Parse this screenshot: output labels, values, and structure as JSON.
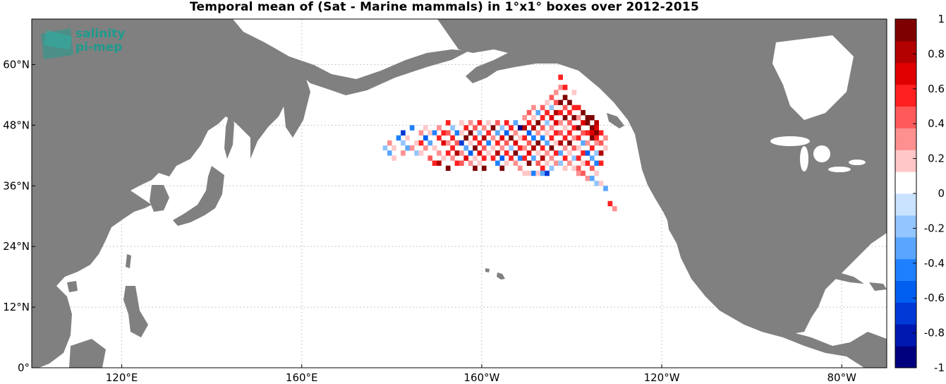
{
  "title": "Temporal mean of (Sat - Marine mammals) in 1°x1° boxes over 2012-2015",
  "logo": {
    "line1": "salinity",
    "line2": "pi-mep"
  },
  "colors": {
    "land": "#808080",
    "ocean": "#ffffff",
    "grid": "#c8c8c8",
    "logo": "#1f9a8e",
    "scale": [
      "#00007f",
      "#0018b0",
      "#0039d6",
      "#005ff0",
      "#1f80ff",
      "#5aa6ff",
      "#93c5ff",
      "#c9e2ff",
      "#ffffff",
      "#ffc8c8",
      "#ff9090",
      "#ff5a5a",
      "#ff2020",
      "#e00000",
      "#b30000",
      "#7f0000"
    ]
  },
  "chart_data": {
    "type": "heatmap",
    "title": "Temporal mean of (Sat - Marine mammals) in 1°x1° boxes over 2012-2015",
    "xlabel": "",
    "ylabel": "",
    "xlim_lon": [
      100,
      290
    ],
    "ylim_lat": [
      0,
      69
    ],
    "x_ticks": [
      {
        "lon": 120,
        "label": "120°E"
      },
      {
        "lon": 160,
        "label": "160°E"
      },
      {
        "lon": 200,
        "label": "160°W"
      },
      {
        "lon": 240,
        "label": "120°W"
      },
      {
        "lon": 280,
        "label": "80°W"
      }
    ],
    "y_ticks": [
      {
        "lat": 0,
        "label": "0°"
      },
      {
        "lat": 12,
        "label": "12°N"
      },
      {
        "lat": 24,
        "label": "24°N"
      },
      {
        "lat": 36,
        "label": "36°N"
      },
      {
        "lat": 48,
        "label": "48°N"
      },
      {
        "lat": 60,
        "label": "60°N"
      }
    ],
    "colorbar": {
      "min": -1,
      "max": 1,
      "ticks": [
        1,
        0.8,
        0.6,
        0.4,
        0.2,
        0,
        -0.2,
        -0.4,
        -0.6,
        -0.8,
        -1
      ],
      "tick_labels": [
        "1",
        "0.8",
        "0.6",
        "0.4",
        "0.2",
        "0",
        "-0.2",
        "-0.4",
        "-0.6",
        "-0.8",
        "-1"
      ]
    },
    "grid": true,
    "cell_size_deg": 1,
    "cells_note": "1°x1° boxes in North Pacific, ~39°N–53°N, ~178°E–124°W",
    "cells": [
      [
        178,
        43,
        -0.2
      ],
      [
        178,
        42,
        0.1
      ],
      [
        179,
        44,
        0.3
      ],
      [
        179,
        42,
        -0.3
      ],
      [
        180,
        43,
        0.2
      ],
      [
        180,
        41,
        0.2
      ],
      [
        181,
        45,
        -0.5
      ],
      [
        181,
        43,
        0.1
      ],
      [
        182,
        46,
        -0.7
      ],
      [
        182,
        44,
        -0.2
      ],
      [
        182,
        42,
        0.3
      ],
      [
        183,
        45,
        0.2
      ],
      [
        183,
        43,
        -0.3
      ],
      [
        184,
        47,
        -0.4
      ],
      [
        184,
        45,
        0.1
      ],
      [
        184,
        43,
        0.3
      ],
      [
        185,
        44,
        0.2
      ],
      [
        185,
        42,
        -0.2
      ],
      [
        186,
        46,
        0.3
      ],
      [
        186,
        44,
        0.5
      ],
      [
        186,
        42,
        0.2
      ],
      [
        187,
        47,
        0.2
      ],
      [
        187,
        45,
        -0.6
      ],
      [
        187,
        43,
        0.3
      ],
      [
        188,
        46,
        0.2
      ],
      [
        188,
        44,
        -0.3
      ],
      [
        188,
        41,
        0.4
      ],
      [
        189,
        46,
        -0.5
      ],
      [
        189,
        45,
        0.1
      ],
      [
        189,
        43,
        0.2
      ],
      [
        189,
        40,
        0.6
      ],
      [
        190,
        47,
        0.3
      ],
      [
        190,
        45,
        0.5
      ],
      [
        190,
        42,
        0.3
      ],
      [
        190,
        40,
        0.8
      ],
      [
        191,
        46,
        0.6
      ],
      [
        191,
        44,
        0.7
      ],
      [
        191,
        41,
        0.2
      ],
      [
        192,
        48,
        0.5
      ],
      [
        192,
        46,
        0.4
      ],
      [
        192,
        44,
        0.3
      ],
      [
        192,
        42,
        0.6
      ],
      [
        192,
        39,
        0.9
      ],
      [
        193,
        47,
        -0.2
      ],
      [
        193,
        45,
        0.6
      ],
      [
        193,
        43,
        0.5
      ],
      [
        193,
        41,
        0.3
      ],
      [
        194,
        46,
        -0.4
      ],
      [
        194,
        44,
        0.4
      ],
      [
        194,
        42,
        0.8
      ],
      [
        194,
        40,
        0.5
      ],
      [
        195,
        48,
        0.2
      ],
      [
        195,
        46,
        0.2
      ],
      [
        195,
        44,
        -0.7
      ],
      [
        195,
        42,
        0.3
      ],
      [
        195,
        40,
        0.4
      ],
      [
        196,
        47,
        0.5
      ],
      [
        196,
        45,
        0.9
      ],
      [
        196,
        43,
        -0.3
      ],
      [
        196,
        41,
        0.7
      ],
      [
        197,
        48,
        0.3
      ],
      [
        197,
        46,
        0.9
      ],
      [
        197,
        44,
        0.2
      ],
      [
        197,
        42,
        -0.6
      ],
      [
        197,
        40,
        0.3
      ],
      [
        198,
        47,
        0.4
      ],
      [
        198,
        45,
        0.6
      ],
      [
        198,
        43,
        0.9
      ],
      [
        198,
        41,
        0.2
      ],
      [
        198,
        39,
        1.0
      ],
      [
        199,
        48,
        0.6
      ],
      [
        199,
        46,
        -0.2
      ],
      [
        199,
        44,
        0.5
      ],
      [
        199,
        42,
        0.7
      ],
      [
        199,
        40,
        0.2
      ],
      [
        200,
        47,
        0.3
      ],
      [
        200,
        45,
        0.8
      ],
      [
        200,
        43,
        0.4
      ],
      [
        200,
        41,
        0.6
      ],
      [
        200,
        39,
        0.9
      ],
      [
        201,
        48,
        0.2
      ],
      [
        201,
        46,
        0.5
      ],
      [
        201,
        44,
        -0.5
      ],
      [
        201,
        42,
        0.2
      ],
      [
        202,
        47,
        0.9
      ],
      [
        202,
        45,
        0.3
      ],
      [
        202,
        43,
        0.2
      ],
      [
        202,
        41,
        0.5
      ],
      [
        203,
        48,
        0.4
      ],
      [
        203,
        46,
        -0.3
      ],
      [
        203,
        44,
        0.6
      ],
      [
        203,
        42,
        0.8
      ],
      [
        203,
        40,
        -0.4
      ],
      [
        204,
        47,
        -0.2
      ],
      [
        204,
        45,
        0.7
      ],
      [
        204,
        43,
        0.3
      ],
      [
        204,
        41,
        -0.6
      ],
      [
        204,
        39,
        0.9
      ],
      [
        205,
        48,
        0.5
      ],
      [
        205,
        46,
        -0.6
      ],
      [
        205,
        44,
        0.4
      ],
      [
        205,
        42,
        0.6
      ],
      [
        205,
        40,
        0.2
      ],
      [
        206,
        47,
        0.6
      ],
      [
        206,
        45,
        0.9
      ],
      [
        206,
        43,
        -0.2
      ],
      [
        206,
        41,
        0.5
      ],
      [
        207,
        48,
        -0.3
      ],
      [
        207,
        46,
        0.3
      ],
      [
        207,
        44,
        0.7
      ],
      [
        207,
        42,
        0.9
      ],
      [
        207,
        40,
        0.3
      ],
      [
        208,
        47,
        -0.9
      ],
      [
        208,
        45,
        0.2
      ],
      [
        208,
        43,
        0.6
      ],
      [
        208,
        41,
        -0.4
      ],
      [
        208,
        39,
        0.3
      ],
      [
        209,
        49,
        0.3
      ],
      [
        209,
        47,
        0.8
      ],
      [
        209,
        45,
        0.5
      ],
      [
        209,
        43,
        0.3
      ],
      [
        209,
        41,
        0.5
      ],
      [
        209,
        38,
        0.2
      ],
      [
        210,
        50,
        0.4
      ],
      [
        210,
        48,
        0.6
      ],
      [
        210,
        46,
        -0.6
      ],
      [
        210,
        44,
        0.4
      ],
      [
        210,
        42,
        0.7
      ],
      [
        210,
        40,
        0.9
      ],
      [
        210,
        38,
        0.2
      ],
      [
        211,
        51,
        0.3
      ],
      [
        211,
        49,
        0.2
      ],
      [
        211,
        47,
        0.8
      ],
      [
        211,
        45,
        -0.5
      ],
      [
        211,
        43,
        0.8
      ],
      [
        211,
        41,
        -0.3
      ],
      [
        211,
        38,
        -0.4
      ],
      [
        212,
        50,
        -0.3
      ],
      [
        212,
        48,
        0.9
      ],
      [
        212,
        46,
        0.3
      ],
      [
        212,
        44,
        0.9
      ],
      [
        212,
        42,
        0.2
      ],
      [
        212,
        40,
        0.4
      ],
      [
        212,
        38,
        0.2
      ],
      [
        213,
        51,
        0.4
      ],
      [
        213,
        49,
        0.5
      ],
      [
        213,
        47,
        0.4
      ],
      [
        213,
        45,
        -0.4
      ],
      [
        213,
        43,
        0.6
      ],
      [
        213,
        41,
        0.8
      ],
      [
        213,
        39,
        0.6
      ],
      [
        213,
        38,
        -0.3
      ],
      [
        214,
        52,
        0.2
      ],
      [
        214,
        50,
        0.6
      ],
      [
        214,
        48,
        -0.2
      ],
      [
        214,
        46,
        0.2
      ],
      [
        214,
        44,
        -0.3
      ],
      [
        214,
        42,
        0.3
      ],
      [
        214,
        40,
        0.2
      ],
      [
        214,
        38,
        -0.7
      ],
      [
        215,
        53,
        0.4
      ],
      [
        215,
        51,
        -0.2
      ],
      [
        215,
        49,
        0.7
      ],
      [
        215,
        47,
        0.3
      ],
      [
        215,
        45,
        0.6
      ],
      [
        215,
        43,
        0.9
      ],
      [
        215,
        41,
        0.3
      ],
      [
        215,
        39,
        -0.2
      ],
      [
        216,
        54,
        0.3
      ],
      [
        216,
        52,
        0.4
      ],
      [
        216,
        50,
        0.8
      ],
      [
        216,
        48,
        0.7
      ],
      [
        216,
        46,
        0.5
      ],
      [
        216,
        44,
        0.2
      ],
      [
        216,
        42,
        0.6
      ],
      [
        216,
        40,
        0.3
      ],
      [
        217,
        57,
        0.6
      ],
      [
        217,
        55,
        0.3
      ],
      [
        217,
        52,
        0.9
      ],
      [
        217,
        50,
        0.5
      ],
      [
        217,
        48,
        0.3
      ],
      [
        217,
        46,
        0.4
      ],
      [
        217,
        44,
        0.8
      ],
      [
        217,
        42,
        -0.3
      ],
      [
        217,
        40,
        -0.2
      ],
      [
        218,
        55,
        0.5
      ],
      [
        218,
        53,
        1.0
      ],
      [
        218,
        51,
        0.4
      ],
      [
        218,
        49,
        0.9
      ],
      [
        218,
        47,
        0.2
      ],
      [
        218,
        45,
        0.5
      ],
      [
        218,
        43,
        0.3
      ],
      [
        218,
        41,
        0.6
      ],
      [
        218,
        39,
        0.2
      ],
      [
        219,
        52,
        0.9
      ],
      [
        219,
        50,
        0.6
      ],
      [
        219,
        48,
        0.4
      ],
      [
        219,
        46,
        0.6
      ],
      [
        219,
        44,
        0.9
      ],
      [
        219,
        42,
        0.2
      ],
      [
        219,
        40,
        0.3
      ],
      [
        220,
        54,
        0.2
      ],
      [
        220,
        51,
        0.5
      ],
      [
        220,
        49,
        0.9
      ],
      [
        220,
        47,
        0.6
      ],
      [
        220,
        45,
        0.3
      ],
      [
        220,
        43,
        0.4
      ],
      [
        220,
        41,
        -0.2
      ],
      [
        220,
        39,
        0.2
      ],
      [
        221,
        51,
        0.6
      ],
      [
        221,
        49,
        0.3
      ],
      [
        221,
        47,
        0.9
      ],
      [
        221,
        45,
        0.6
      ],
      [
        221,
        43,
        0.2
      ],
      [
        221,
        41,
        0.6
      ],
      [
        221,
        39,
        0.4
      ],
      [
        221,
        38,
        0.3
      ],
      [
        222,
        50,
        1.0
      ],
      [
        222,
        48,
        0.7
      ],
      [
        222,
        46,
        0.4
      ],
      [
        222,
        44,
        -0.3
      ],
      [
        222,
        42,
        0.5
      ],
      [
        222,
        40,
        0.2
      ],
      [
        222,
        38,
        0.4
      ],
      [
        223,
        49,
        1.0
      ],
      [
        223,
        48,
        0.9
      ],
      [
        223,
        46,
        0.6
      ],
      [
        223,
        44,
        0.3
      ],
      [
        223,
        42,
        -0.6
      ],
      [
        223,
        40,
        0.5
      ],
      [
        223,
        37,
        0.3
      ],
      [
        224,
        49,
        0.9
      ],
      [
        224,
        47,
        1.0
      ],
      [
        224,
        46,
        0.7
      ],
      [
        224,
        45,
        0.9
      ],
      [
        224,
        43,
        0.6
      ],
      [
        224,
        41,
        -0.3
      ],
      [
        224,
        39,
        0.4
      ],
      [
        224,
        37,
        -0.3
      ],
      [
        225,
        48,
        0.8
      ],
      [
        225,
        47,
        0.7
      ],
      [
        225,
        46,
        1.0
      ],
      [
        225,
        45,
        0.5
      ],
      [
        225,
        44,
        0.3
      ],
      [
        225,
        42,
        -0.2
      ],
      [
        225,
        40,
        -0.5
      ],
      [
        225,
        38,
        0.2
      ],
      [
        225,
        36,
        -0.2
      ],
      [
        226,
        46,
        0.6
      ],
      [
        226,
        44,
        0.4
      ],
      [
        226,
        42,
        0.8
      ],
      [
        226,
        40,
        0.6
      ],
      [
        226,
        36,
        0.2
      ],
      [
        227,
        45,
        0.3
      ],
      [
        227,
        43,
        0.2
      ],
      [
        227,
        35,
        -0.3
      ],
      [
        228,
        32,
        0.5
      ],
      [
        229,
        31,
        0.3
      ]
    ]
  }
}
